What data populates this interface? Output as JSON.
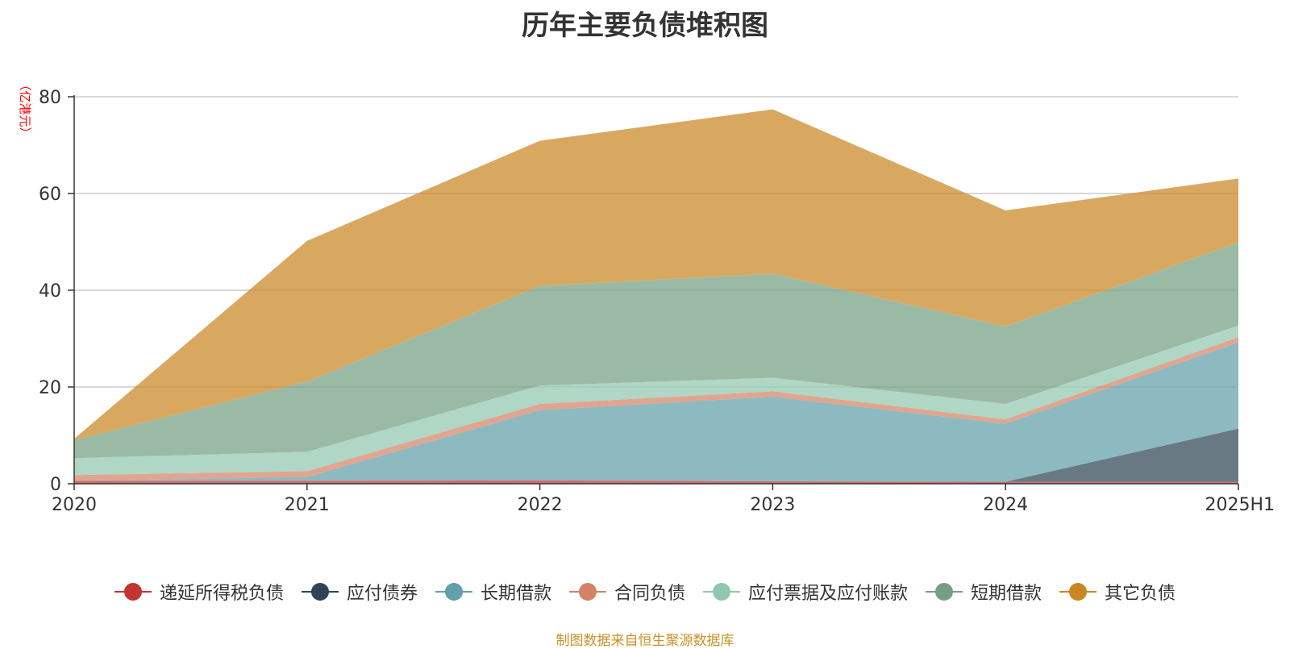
{
  "chart_data": {
    "type": "area",
    "stacked": true,
    "title": "历年主要负债堆积图",
    "ylabel": "（亿港元）",
    "xlabel": "",
    "ylim": [
      0,
      80
    ],
    "yticks": [
      0,
      20,
      40,
      60,
      80
    ],
    "categories": [
      "2020",
      "2021",
      "2022",
      "2023",
      "2024",
      "2025H1"
    ],
    "legend_position": "bottom",
    "grid": true,
    "series": [
      {
        "name": "递延所得税负债",
        "color": "#c23531",
        "values": [
          0.6,
          0.6,
          0.7,
          0.5,
          0.4,
          0.4
        ]
      },
      {
        "name": "应付债券",
        "color": "#2f4554",
        "values": [
          0,
          0,
          0,
          0,
          0,
          11
        ]
      },
      {
        "name": "长期借款",
        "color": "#61a0a8",
        "values": [
          0,
          0.8,
          14.5,
          17.5,
          12,
          17.8
        ]
      },
      {
        "name": "合同负债",
        "color": "#d48265",
        "values": [
          1.2,
          1.2,
          1.3,
          1.1,
          0.9,
          1.1
        ]
      },
      {
        "name": "应付票据及应付账款",
        "color": "#91c7ae",
        "values": [
          3.5,
          4,
          3.8,
          2.8,
          3.2,
          2.4
        ]
      },
      {
        "name": "短期借款",
        "color": "#749f83",
        "values": [
          3.7,
          14.5,
          20.6,
          21.5,
          16,
          17.2
        ]
      },
      {
        "name": "其它负债",
        "color": "#ca8622",
        "values": [
          0.3,
          29.1,
          30,
          34,
          24,
          13.2
        ]
      }
    ]
  },
  "source_note": "制图数据来自恒生聚源数据库"
}
